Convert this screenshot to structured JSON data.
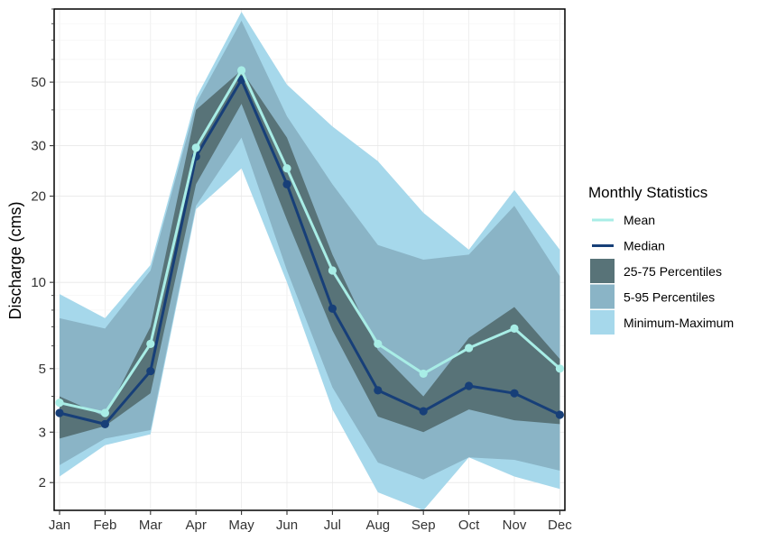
{
  "chart_data": {
    "type": "area",
    "y_scale": "log",
    "ylabel": "Discharge (cms)",
    "xlabel": "",
    "categories": [
      "Jan",
      "Feb",
      "Mar",
      "Apr",
      "May",
      "Jun",
      "Jul",
      "Aug",
      "Sep",
      "Oct",
      "Nov",
      "Dec"
    ],
    "ylim": [
      1.6,
      90
    ],
    "yticks": [
      2,
      3,
      5,
      10,
      20,
      30,
      50
    ],
    "grid": true,
    "legend_title": "Monthly Statistics",
    "legend_position": "right",
    "bands": [
      {
        "name": "Minimum-Maximum",
        "color": "#a6d8eb",
        "low": [
          2.1,
          2.7,
          2.95,
          18,
          25,
          10,
          3.6,
          1.85,
          1.6,
          2.45,
          2.1,
          1.9
        ],
        "high": [
          9.1,
          7.5,
          11.5,
          44,
          88,
          49,
          35,
          26.5,
          17.5,
          13,
          21,
          13
        ]
      },
      {
        "name": "5-95 Percentiles",
        "color": "#8ab4c6",
        "low": [
          2.3,
          2.85,
          3.05,
          18.5,
          32,
          11,
          4.3,
          2.35,
          2.05,
          2.45,
          2.4,
          2.2
        ],
        "high": [
          7.5,
          6.9,
          11,
          42,
          82,
          38,
          22,
          13.5,
          12,
          12.5,
          18.5,
          10.5
        ]
      },
      {
        "name": "25-75 Percentiles",
        "color": "#587378",
        "low": [
          2.85,
          3.15,
          4.1,
          22,
          42,
          16.5,
          6.8,
          3.4,
          3.0,
          3.6,
          3.3,
          3.2
        ],
        "high": [
          4.0,
          3.4,
          7,
          40,
          55,
          32,
          12.5,
          5.8,
          4.0,
          6.4,
          8.2,
          5.4
        ]
      }
    ],
    "series": [
      {
        "name": "Mean",
        "color": "#a8ede6",
        "values": [
          3.8,
          3.5,
          6.1,
          29.5,
          55,
          25,
          11,
          6.1,
          4.8,
          5.9,
          6.9,
          5.0
        ]
      },
      {
        "name": "Median",
        "color": "#173f78",
        "values": [
          3.5,
          3.2,
          4.9,
          27.5,
          51,
          22,
          8.1,
          4.2,
          3.55,
          4.35,
          4.1,
          3.45
        ]
      }
    ]
  }
}
